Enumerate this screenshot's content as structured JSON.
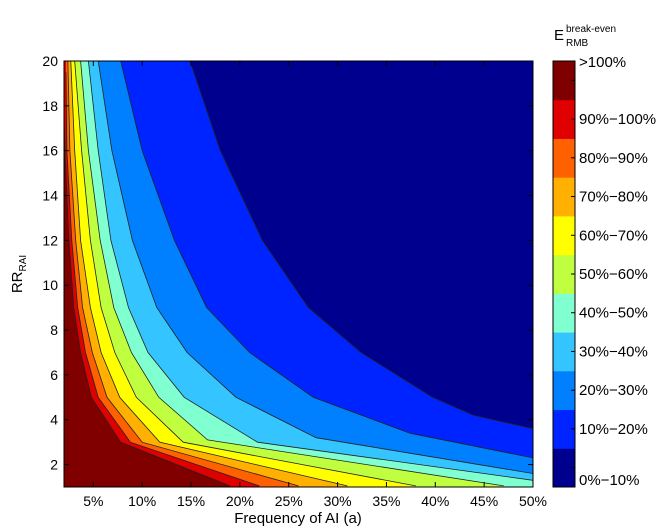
{
  "chart_data": {
    "type": "heatmap",
    "x": {
      "label": "Frequency of AI (a)",
      "range": [
        0.02,
        0.5
      ],
      "tick_values": [
        0.05,
        0.1,
        0.15,
        0.2,
        0.25,
        0.3,
        0.35,
        0.4,
        0.45,
        0.5
      ],
      "tick_labels": [
        "5%",
        "10%",
        "15%",
        "20%",
        "25%",
        "30%",
        "35%",
        "40%",
        "45%",
        "50%"
      ]
    },
    "y": {
      "label_main": "RR",
      "label_sub": "RAI",
      "range": [
        1,
        20
      ],
      "tick_values": [
        2,
        4,
        6,
        8,
        10,
        12,
        14,
        16,
        18,
        20
      ],
      "tick_labels": [
        "2",
        "4",
        "6",
        "8",
        "10",
        "12",
        "14",
        "16",
        "18",
        "20"
      ]
    },
    "colorbar": {
      "title_main": "E",
      "title_sup": "break-even",
      "title_sub": "RMB",
      "levels": [
        {
          "label": "0%−10%",
          "color": "#00008f"
        },
        {
          "label": "10%−20%",
          "color": "#0024ff"
        },
        {
          "label": "20%−30%",
          "color": "#0080ff"
        },
        {
          "label": "30%−40%",
          "color": "#34c4ff"
        },
        {
          "label": "40%−50%",
          "color": "#80ffd0"
        },
        {
          "label": "50%−60%",
          "color": "#c0ff40"
        },
        {
          "label": "60%−70%",
          "color": "#ffff00"
        },
        {
          "label": "70%−80%",
          "color": "#ffb000"
        },
        {
          "label": "80%−90%",
          "color": "#ff6000"
        },
        {
          "label": "90%−100%",
          "color": "#e00000"
        },
        {
          "label": ">100%",
          "color": "#800000"
        }
      ]
    },
    "contour_boundaries_E_at_10pct_steps": [
      {
        "level": 0.1,
        "points": [
          [
            0.149,
            20
          ],
          [
            0.18,
            16
          ],
          [
            0.223,
            12
          ],
          [
            0.27,
            9
          ],
          [
            0.324,
            7
          ],
          [
            0.397,
            5
          ],
          [
            0.439,
            4.2
          ],
          [
            0.5,
            3.6
          ]
        ]
      },
      {
        "level": 0.2,
        "points": [
          [
            0.078,
            20
          ],
          [
            0.1,
            16
          ],
          [
            0.133,
            12
          ],
          [
            0.166,
            9
          ],
          [
            0.21,
            7
          ],
          [
            0.275,
            5
          ],
          [
            0.374,
            3.4
          ],
          [
            0.5,
            2.3
          ]
        ]
      },
      {
        "level": 0.3,
        "points": [
          [
            0.055,
            20
          ],
          [
            0.069,
            16
          ],
          [
            0.09,
            12
          ],
          [
            0.115,
            9
          ],
          [
            0.146,
            7
          ],
          [
            0.196,
            5
          ],
          [
            0.278,
            3.2
          ],
          [
            0.5,
            1.6
          ]
        ]
      },
      {
        "level": 0.4,
        "points": [
          [
            0.045,
            20
          ],
          [
            0.055,
            16
          ],
          [
            0.068,
            12
          ],
          [
            0.086,
            9
          ],
          [
            0.106,
            7
          ],
          [
            0.143,
            5
          ],
          [
            0.218,
            3
          ],
          [
            0.5,
            1.3
          ]
        ]
      },
      {
        "level": 0.5,
        "points": [
          [
            0.037,
            20
          ],
          [
            0.045,
            16
          ],
          [
            0.057,
            12
          ],
          [
            0.071,
            9
          ],
          [
            0.089,
            7
          ],
          [
            0.117,
            5
          ],
          [
            0.167,
            3.1
          ],
          [
            0.47,
            1.05
          ]
        ]
      },
      {
        "level": 0.6,
        "points": [
          [
            0.031,
            20
          ],
          [
            0.038,
            16
          ],
          [
            0.047,
            12
          ],
          [
            0.058,
            9
          ],
          [
            0.072,
            7
          ],
          [
            0.094,
            5
          ],
          [
            0.142,
            3
          ],
          [
            0.38,
            1.05
          ]
        ]
      },
      {
        "level": 0.7,
        "points": [
          [
            0.027,
            20
          ],
          [
            0.031,
            16
          ],
          [
            0.037,
            12
          ],
          [
            0.047,
            9
          ],
          [
            0.058,
            7
          ],
          [
            0.077,
            5
          ],
          [
            0.118,
            3
          ],
          [
            0.31,
            1.05
          ]
        ]
      },
      {
        "level": 0.8,
        "points": [
          [
            0.024,
            20
          ],
          [
            0.026,
            16
          ],
          [
            0.032,
            12
          ],
          [
            0.039,
            9
          ],
          [
            0.049,
            7
          ],
          [
            0.064,
            5
          ],
          [
            0.1,
            3
          ],
          [
            0.26,
            1.05
          ]
        ]
      },
      {
        "level": 0.9,
        "points": [
          [
            0.022,
            19.5
          ],
          [
            0.023,
            16
          ],
          [
            0.028,
            12
          ],
          [
            0.034,
            9
          ],
          [
            0.042,
            7
          ],
          [
            0.055,
            5
          ],
          [
            0.088,
            3
          ],
          [
            0.22,
            1.05
          ]
        ]
      },
      {
        "level": 1.0,
        "points": [
          [
            0.02,
            17.7
          ],
          [
            0.021,
            16
          ],
          [
            0.025,
            12
          ],
          [
            0.03,
            9
          ],
          [
            0.037,
            7
          ],
          [
            0.048,
            5
          ],
          [
            0.078,
            3
          ],
          [
            0.19,
            1.05
          ]
        ]
      }
    ],
    "grid": false,
    "legend": "colorbar-right"
  }
}
